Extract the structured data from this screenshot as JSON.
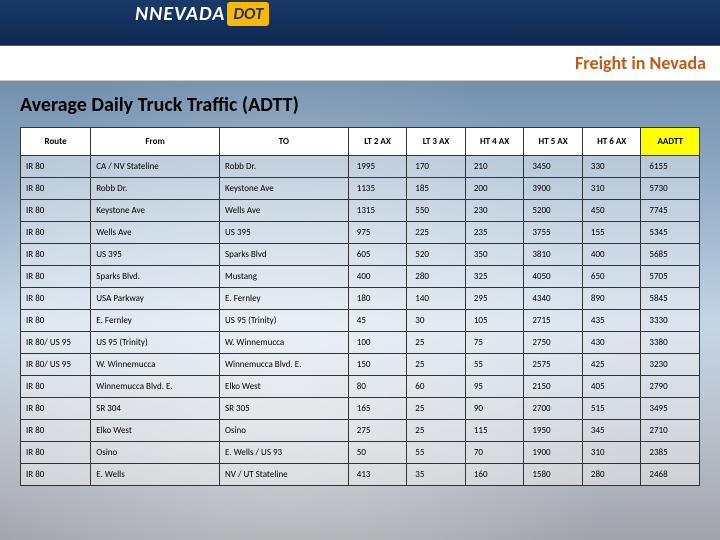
{
  "logo": {
    "brand": "NEVADA",
    "suffix": "DOT"
  },
  "header": {
    "title": "Freight in Nevada"
  },
  "section": {
    "title": "Average Daily Truck Traffic (ADTT)"
  },
  "table": {
    "columns": [
      "Route",
      "From",
      "TO",
      "LT 2 AX",
      "LT 3 AX",
      "HT 4 AX",
      "HT 5 AX",
      "HT 6 AX",
      "AADTT"
    ],
    "highlight_last_header": true,
    "col_align": [
      "left",
      "left",
      "left",
      "right",
      "right",
      "right",
      "right",
      "right",
      "right"
    ],
    "rows": [
      [
        "IR 80",
        "CA / NV Stateline",
        "Robb Dr.",
        "1995",
        "170",
        "210",
        "3450",
        "330",
        "6155"
      ],
      [
        "IR 80",
        "Robb Dr.",
        "Keystone Ave",
        "1135",
        "185",
        "200",
        "3900",
        "310",
        "5730"
      ],
      [
        "IR 80",
        "Keystone Ave",
        "Wells Ave",
        "1315",
        "550",
        "230",
        "5200",
        "450",
        "7745"
      ],
      [
        "IR 80",
        "Wells Ave",
        "US 395",
        "975",
        "225",
        "235",
        "3755",
        "155",
        "5345"
      ],
      [
        "IR 80",
        "US 395",
        "Sparks Blvd",
        "605",
        "520",
        "350",
        "3810",
        "400",
        "5685"
      ],
      [
        "IR 80",
        "Sparks Blvd.",
        "Mustang",
        "400",
        "280",
        "325",
        "4050",
        "650",
        "5705"
      ],
      [
        "IR 80",
        "USA Parkway",
        "E. Fernley",
        "180",
        "140",
        "295",
        "4340",
        "890",
        "5845"
      ],
      [
        "IR 80",
        "E. Fernley",
        "US 95 (Trinity)",
        "45",
        "30",
        "105",
        "2715",
        "435",
        "3330"
      ],
      [
        "IR 80/ US 95",
        "US 95 (Trinity)",
        "W. Winnemucca",
        "100",
        "25",
        "75",
        "2750",
        "430",
        "3380"
      ],
      [
        "IR 80/ US 95",
        "W. Winnemucca",
        "Winnemucca Blvd. E.",
        "150",
        "25",
        "55",
        "2575",
        "425",
        "3230"
      ],
      [
        "IR 80",
        "Winnemucca Blvd. E.",
        "Elko West",
        "80",
        "60",
        "95",
        "2150",
        "405",
        "2790"
      ],
      [
        "IR 80",
        "SR 304",
        "SR 305",
        "165",
        "25",
        "90",
        "2700",
        "515",
        "3495"
      ],
      [
        "IR 80",
        "Elko West",
        "Osino",
        "275",
        "25",
        "115",
        "1950",
        "345",
        "2710"
      ],
      [
        "IR 80",
        "Osino",
        "E. Wells / US 93",
        "50",
        "55",
        "70",
        "1900",
        "310",
        "2385"
      ],
      [
        "IR 80",
        "E. Wells",
        "NV / UT Stateline",
        "413",
        "35",
        "160",
        "1580",
        "280",
        "2468"
      ]
    ]
  },
  "colors": {
    "header_bg_top": "#1a3a6a",
    "header_bg_bottom": "#0d2850",
    "title_color": "#c05a1a",
    "highlight": "#ffff00",
    "border": "#333333"
  }
}
